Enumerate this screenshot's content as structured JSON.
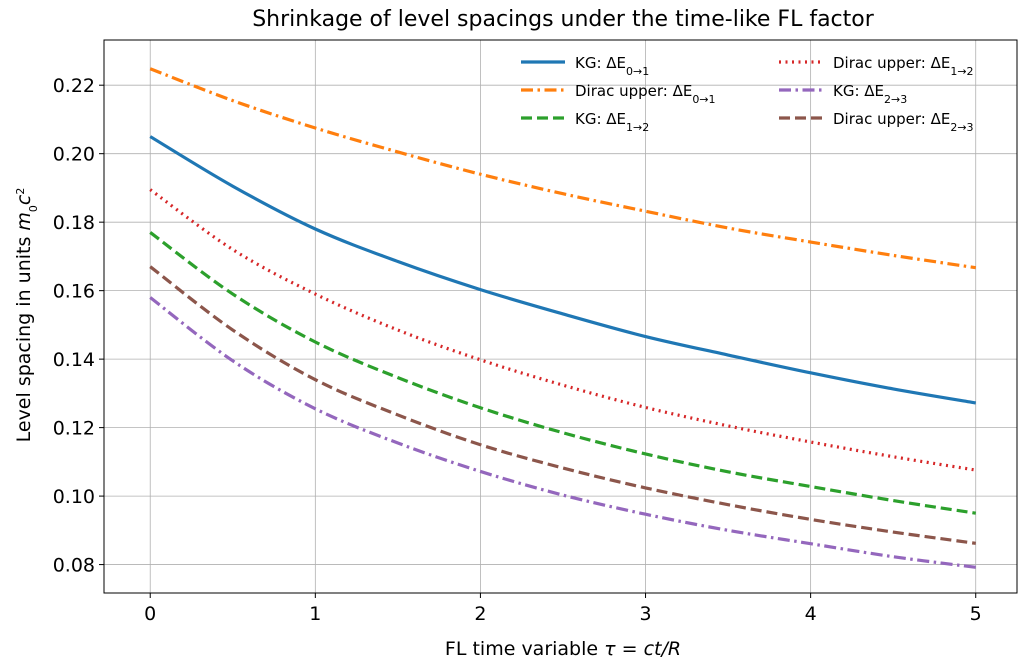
{
  "chart_data": {
    "type": "line",
    "title": "Shrinkage of level spacings under the time-like FL factor",
    "xlabel": {
      "prefix": "FL time variable ",
      "math": "τ = ct/R"
    },
    "ylabel": {
      "prefix": "Level spacing in units ",
      "math": "m",
      "sub": "0",
      "math2": "c",
      "sup": "2"
    },
    "xlim": [
      -0.28,
      5.25
    ],
    "ylim": [
      0.0717,
      0.2332
    ],
    "xticks": [
      0,
      1,
      2,
      3,
      4,
      5
    ],
    "xtick_labels": [
      "0",
      "1",
      "2",
      "3",
      "4",
      "5"
    ],
    "yticks": [
      0.08,
      0.1,
      0.12,
      0.14,
      0.16,
      0.18,
      0.2,
      0.22
    ],
    "ytick_labels": [
      "0.08",
      "0.10",
      "0.12",
      "0.14",
      "0.16",
      "0.18",
      "0.20",
      "0.22"
    ],
    "grid": true,
    "legend_position": "top-right",
    "x": [
      0,
      0.5,
      1,
      1.5,
      2,
      2.5,
      3,
      3.5,
      4,
      4.5,
      5
    ],
    "series": [
      {
        "name": {
          "prefix": "KG: ΔE",
          "sub": "0→1"
        },
        "color": "#1f77b4",
        "style": "solid",
        "values": [
          0.205,
          0.1905,
          0.178,
          0.1685,
          0.1603,
          0.1532,
          0.1466,
          0.1412,
          0.136,
          0.1313,
          0.1272
        ]
      },
      {
        "name": {
          "prefix": "Dirac upper: ΔE",
          "sub": "0→1"
        },
        "color": "#ff7f0e",
        "style": "dashdot",
        "values": [
          0.2248,
          0.2155,
          0.2075,
          0.2005,
          0.194,
          0.1883,
          0.1832,
          0.1783,
          0.1742,
          0.1703,
          0.1667
        ]
      },
      {
        "name": {
          "prefix": "KG: ΔE",
          "sub": "1→2"
        },
        "color": "#2ca02c",
        "style": "dashed",
        "values": [
          0.177,
          0.159,
          0.145,
          0.1346,
          0.1258,
          0.1185,
          0.1123,
          0.1071,
          0.1028,
          0.0987,
          0.095
        ]
      },
      {
        "name": {
          "prefix": "Dirac upper: ΔE",
          "sub": "1→2"
        },
        "color": "#d62728",
        "style": "dotted",
        "values": [
          0.1895,
          0.172,
          0.159,
          0.1485,
          0.1398,
          0.1324,
          0.1259,
          0.1205,
          0.1158,
          0.1115,
          0.1076
        ]
      },
      {
        "name": {
          "prefix": "KG: ΔE",
          "sub": "2→3"
        },
        "color": "#9467bd",
        "style": "dashdot",
        "values": [
          0.158,
          0.1395,
          0.1255,
          0.1155,
          0.1072,
          0.1003,
          0.0947,
          0.09,
          0.0861,
          0.0823,
          0.0792
        ]
      },
      {
        "name": {
          "prefix": "Dirac upper: ΔE",
          "sub": "2→3"
        },
        "color": "#8c564b",
        "style": "dashed",
        "values": [
          0.167,
          0.1485,
          0.134,
          0.1237,
          0.115,
          0.1082,
          0.1024,
          0.0975,
          0.0932,
          0.0895,
          0.0862
        ]
      }
    ]
  }
}
